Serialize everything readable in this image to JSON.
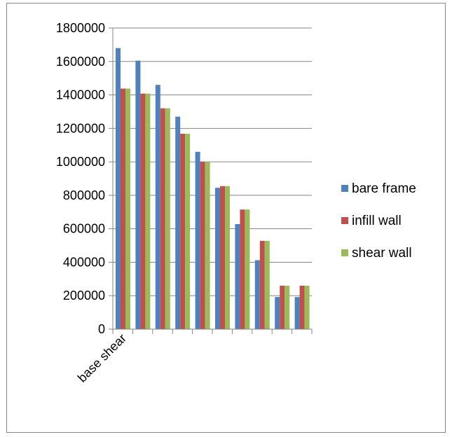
{
  "chart_data": {
    "type": "bar",
    "categories": [
      "base shear",
      "",
      "",
      "",
      "",
      "",
      "",
      "",
      "",
      ""
    ],
    "series": [
      {
        "name": "bare frame",
        "color": "#4F81BD",
        "values": [
          1680000,
          1605000,
          1460000,
          1270000,
          1060000,
          845000,
          628000,
          412000,
          192000,
          192000
        ]
      },
      {
        "name": "infill wall",
        "color": "#C0504D",
        "values": [
          1438000,
          1408000,
          1320000,
          1168000,
          1000000,
          855000,
          715000,
          528000,
          260000,
          260000
        ]
      },
      {
        "name": "shear wall",
        "color": "#9BBB59",
        "values": [
          1438000,
          1408000,
          1320000,
          1168000,
          1000000,
          855000,
          715000,
          528000,
          260000,
          260000
        ]
      }
    ],
    "yticks": [
      "0",
      "200000",
      "400000",
      "600000",
      "800000",
      "1000000",
      "1200000",
      "1400000",
      "1600000",
      "1800000"
    ],
    "ylim": [
      0,
      1800000
    ],
    "title": "",
    "xlabel": "",
    "ylabel": "",
    "grid": true,
    "legend": "right"
  }
}
